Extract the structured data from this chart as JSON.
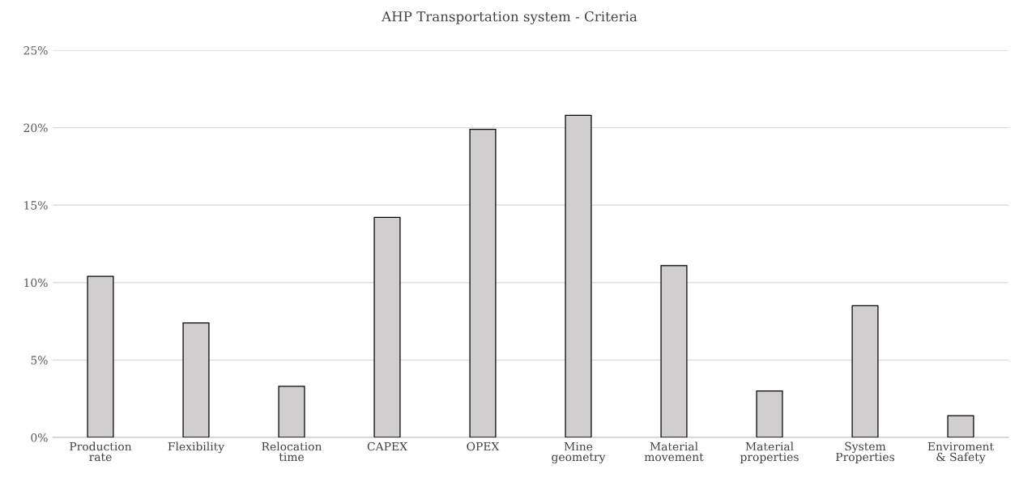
{
  "chart_data": {
    "type": "bar",
    "title": "AHP Transportation system - Criteria",
    "categories": [
      "Production\nrate",
      "Flexibility",
      "Relocation\ntime",
      "CAPEX",
      "OPEX",
      "Mine\ngeometry",
      "Material\nmovement",
      "Material\nproperties",
      "System\nProperties",
      "Enviroment\n& Safety"
    ],
    "values": [
      10.4,
      7.4,
      3.3,
      14.2,
      19.9,
      20.8,
      11.1,
      3.0,
      8.5,
      1.4
    ],
    "color": "#d0cece",
    "ylim": [
      0,
      25
    ],
    "yticks": [
      {
        "value": 0,
        "label": "0%"
      },
      {
        "value": 5,
        "label": "5%"
      },
      {
        "value": 10,
        "label": "10%"
      },
      {
        "value": 15,
        "label": "15%"
      },
      {
        "value": 20,
        "label": "20%"
      },
      {
        "value": 25,
        "label": "25%"
      }
    ],
    "grid": "y"
  }
}
